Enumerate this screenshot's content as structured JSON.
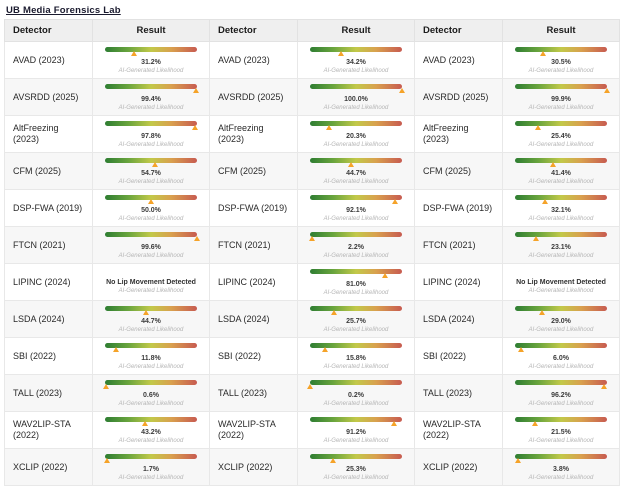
{
  "page": {
    "title_link": "UB Media Forensics Lab"
  },
  "table": {
    "headers": [
      "Detector",
      "Result"
    ],
    "caption": "AI-Generated Likelihood",
    "detectors": [
      "AVAD (2023)",
      "AVSRDD (2025)",
      "AltFreezing (2023)",
      "CFM (2025)",
      "DSP-FWA (2019)",
      "FTCN (2021)",
      "LIPINC (2024)",
      "LSDA (2024)",
      "SBI (2022)",
      "TALL (2023)",
      "WAV2LIP-STA (2022)",
      "XCLIP (2022)"
    ],
    "columns": [
      {
        "results": [
          {
            "value": "31.2%",
            "pct": 31.2
          },
          {
            "value": "99.4%",
            "pct": 99.4
          },
          {
            "value": "97.8%",
            "pct": 97.8
          },
          {
            "value": "54.7%",
            "pct": 54.7
          },
          {
            "value": "50.0%",
            "pct": 50.0
          },
          {
            "value": "99.6%",
            "pct": 99.6
          },
          {
            "value": "No Lip Movement Detected",
            "pct": null
          },
          {
            "value": "44.7%",
            "pct": 44.7
          },
          {
            "value": "11.8%",
            "pct": 11.8
          },
          {
            "value": "0.6%",
            "pct": 0.6
          },
          {
            "value": "43.2%",
            "pct": 43.2
          },
          {
            "value": "1.7%",
            "pct": 1.7
          }
        ]
      },
      {
        "results": [
          {
            "value": "34.2%",
            "pct": 34.2
          },
          {
            "value": "100.0%",
            "pct": 100.0
          },
          {
            "value": "20.3%",
            "pct": 20.3
          },
          {
            "value": "44.7%",
            "pct": 44.7
          },
          {
            "value": "92.1%",
            "pct": 92.1
          },
          {
            "value": "2.2%",
            "pct": 2.2
          },
          {
            "value": "81.0%",
            "pct": 81.0
          },
          {
            "value": "25.7%",
            "pct": 25.7
          },
          {
            "value": "15.8%",
            "pct": 15.8
          },
          {
            "value": "0.2%",
            "pct": 0.2
          },
          {
            "value": "91.2%",
            "pct": 91.2
          },
          {
            "value": "25.3%",
            "pct": 25.3
          }
        ]
      },
      {
        "results": [
          {
            "value": "30.5%",
            "pct": 30.5
          },
          {
            "value": "99.9%",
            "pct": 99.9
          },
          {
            "value": "25.4%",
            "pct": 25.4
          },
          {
            "value": "41.4%",
            "pct": 41.4
          },
          {
            "value": "32.1%",
            "pct": 32.1
          },
          {
            "value": "23.1%",
            "pct": 23.1
          },
          {
            "value": "No Lip Movement Detected",
            "pct": null
          },
          {
            "value": "29.0%",
            "pct": 29.0
          },
          {
            "value": "6.0%",
            "pct": 6.0
          },
          {
            "value": "96.2%",
            "pct": 96.2
          },
          {
            "value": "21.5%",
            "pct": 21.5
          },
          {
            "value": "3.8%",
            "pct": 3.8
          }
        ]
      }
    ]
  },
  "icons": {
    "marker": "triangle-up-icon"
  },
  "colors": {
    "title_text": "#1a1a2e",
    "header_bg": "#efefef",
    "stripe_bg": "#f7f7f7",
    "border": "#e8e8e8",
    "marker": "#f5a329",
    "caption_text": "#b5b5b5",
    "bar_gradient": [
      "#2e7d32",
      "#68a43d",
      "#c2c949",
      "#d9a04e",
      "#c75b50"
    ]
  }
}
